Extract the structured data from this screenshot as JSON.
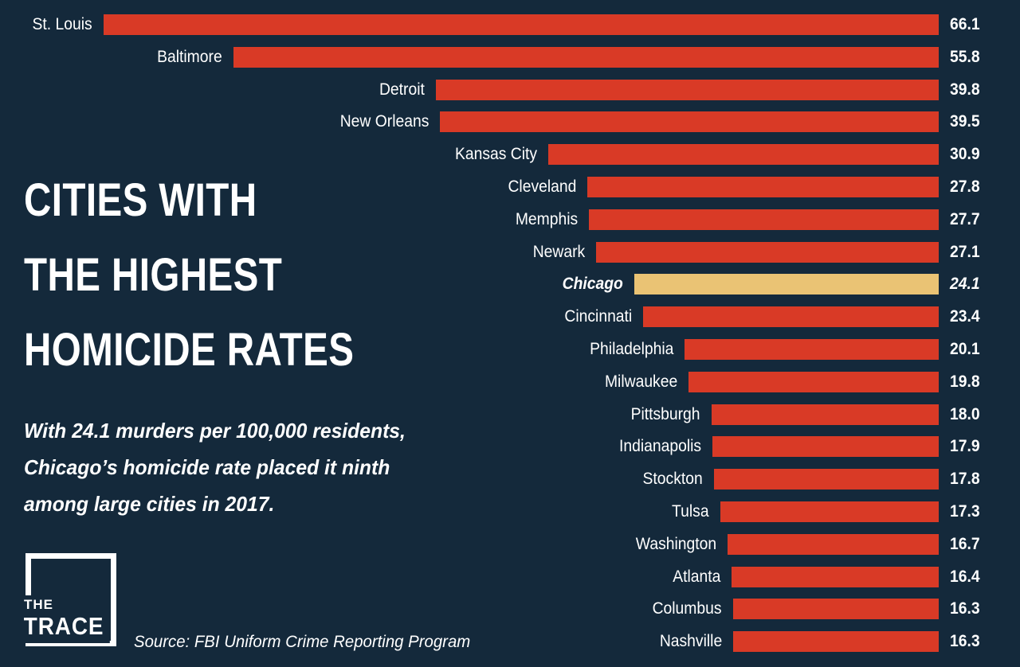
{
  "colors": {
    "background": "#14293B",
    "bar": "#D93A26",
    "highlight_bar": "#EAC374",
    "text": "#FFFFFF"
  },
  "title": {
    "lines": [
      "CITIES WITH",
      "THE HIGHEST",
      "HOMICIDE RATES"
    ]
  },
  "subtitle": {
    "lines": [
      "With 24.1 murders per 100,000 residents,",
      "Chicago’s homicide rate placed it ninth",
      "among large cities in 2017."
    ]
  },
  "source": {
    "text": "Source: FBI Uniform Crime Reporting Program"
  },
  "logo": {
    "the": "THE",
    "trace": "TRACE"
  },
  "chart_data": {
    "type": "bar",
    "orientation": "horizontal",
    "title": "Cities with the highest homicide rates",
    "unit": "murders per 100,000 residents",
    "year": "2017",
    "categories": [
      "St. Louis",
      "Baltimore",
      "Detroit",
      "New Orleans",
      "Kansas City",
      "Cleveland",
      "Memphis",
      "Newark",
      "Chicago",
      "Cincinnati",
      "Philadelphia",
      "Milwaukee",
      "Pittsburgh",
      "Indianapolis",
      "Stockton",
      "Tulsa",
      "Washington",
      "Atlanta",
      "Columbus",
      "Nashville"
    ],
    "values": [
      66.1,
      55.8,
      39.8,
      39.5,
      30.9,
      27.8,
      27.7,
      27.1,
      24.1,
      23.4,
      20.1,
      19.8,
      18.0,
      17.9,
      17.8,
      17.3,
      16.7,
      16.4,
      16.3,
      16.3
    ],
    "value_labels": [
      "66.1",
      "55.8",
      "39.8",
      "39.5",
      "30.9",
      "27.8",
      "27.7",
      "27.1",
      "24.1",
      "23.4",
      "20.1",
      "19.8",
      "18.0",
      "17.9",
      "17.8",
      "17.3",
      "16.7",
      "16.4",
      "16.3",
      "16.3"
    ],
    "highlight": "Chicago",
    "bar_color": "#D93A26",
    "highlight_color": "#EAC374",
    "xlim": [
      0,
      66.1
    ],
    "legend": "none",
    "grid": "off",
    "layout_note": "bars right-aligned at a common edge, city labels to the left of each bar, values at far right"
  }
}
